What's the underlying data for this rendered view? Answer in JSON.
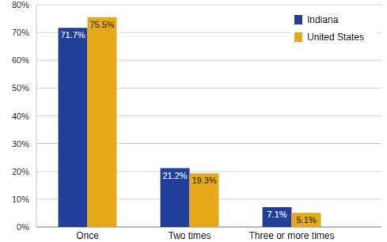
{
  "chart_data": {
    "type": "bar",
    "categories": [
      "Once",
      "Two times",
      "Three or more times"
    ],
    "series": [
      {
        "name": "Indiana",
        "color": "#20409a",
        "values": [
          71.7,
          21.2,
          7.1
        ],
        "value_labels": [
          "71.7%",
          "21.2%",
          "7.1%"
        ]
      },
      {
        "name": "United States",
        "color": "#e6a918",
        "values": [
          75.5,
          19.3,
          5.1
        ],
        "value_labels": [
          "75.5%",
          "19.3%",
          "5.1%"
        ]
      }
    ],
    "ylim": [
      0,
      80
    ],
    "yticks": [
      {
        "value": 0,
        "label": "0%"
      },
      {
        "value": 10,
        "label": "10%"
      },
      {
        "value": 20,
        "label": "20%"
      },
      {
        "value": 30,
        "label": "30%"
      },
      {
        "value": 40,
        "label": "40%"
      },
      {
        "value": 50,
        "label": "50%"
      },
      {
        "value": 60,
        "label": "60%"
      },
      {
        "value": 70,
        "label": "70%"
      },
      {
        "value": 80,
        "label": "80%"
      }
    ],
    "grid": true,
    "legend": "top-right",
    "data_labels": true
  }
}
